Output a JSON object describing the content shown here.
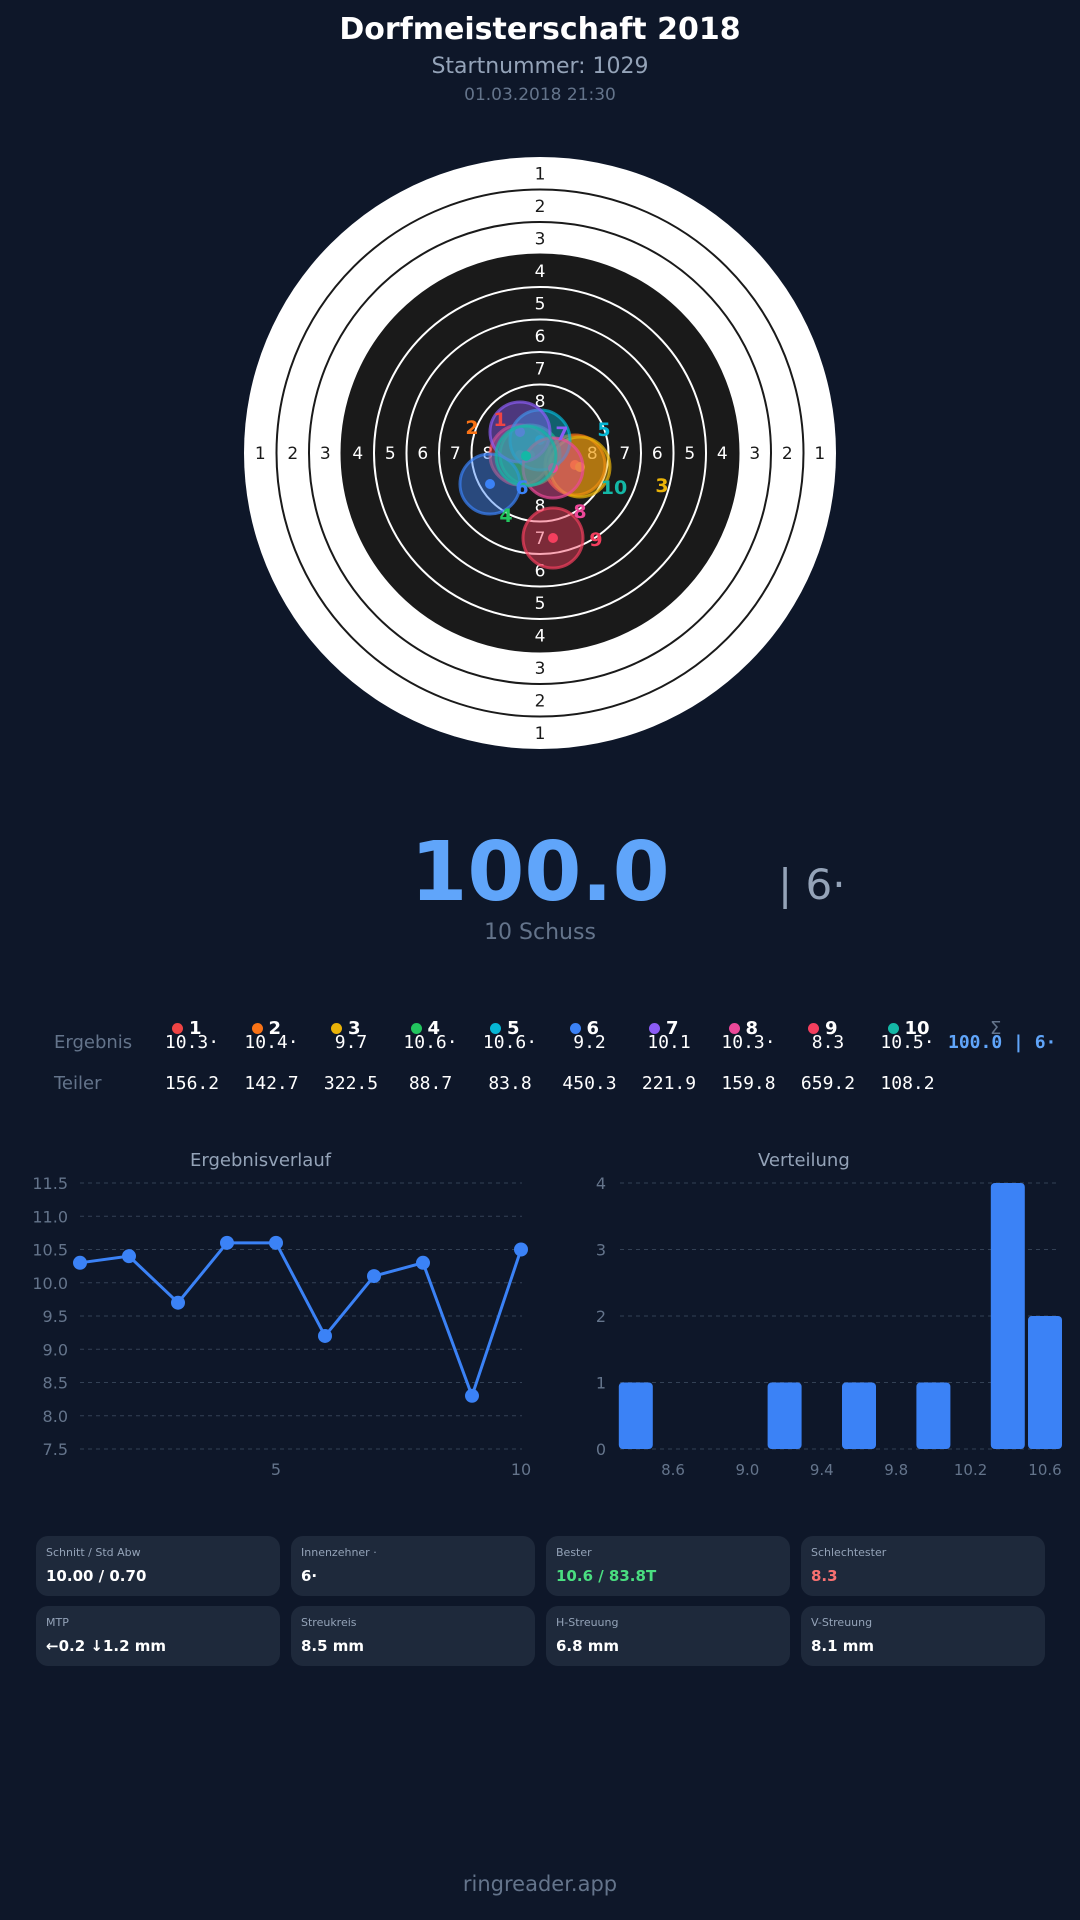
{
  "header": {
    "title": "Dorfmeisterschaft 2018",
    "start_number": "Startnummer: 1029",
    "datetime": "01.03.2018 21:30"
  },
  "target": {
    "ring_labels": [
      "1",
      "2",
      "3",
      "4",
      "5",
      "6",
      "7",
      "8"
    ]
  },
  "summary": {
    "total": "100.0",
    "inner_tens": "| 6·",
    "shot_count": "10 Schuss"
  },
  "table": {
    "sum_symbol": "Σ",
    "row_labels": {
      "result": "Ergebnis",
      "teiler": "Teiler"
    },
    "shots": [
      {
        "n": "1",
        "color": "#ef4444",
        "result": "10.3·",
        "teiler": "156.2"
      },
      {
        "n": "2",
        "color": "#f97316",
        "result": "10.4·",
        "teiler": "142.7"
      },
      {
        "n": "3",
        "color": "#eab308",
        "result": "9.7",
        "teiler": "322.5"
      },
      {
        "n": "4",
        "color": "#22c55e",
        "result": "10.6·",
        "teiler": "88.7"
      },
      {
        "n": "5",
        "color": "#06b6d4",
        "result": "10.6·",
        "teiler": "83.8"
      },
      {
        "n": "6",
        "color": "#3b82f6",
        "result": "9.2",
        "teiler": "450.3"
      },
      {
        "n": "7",
        "color": "#8b5cf6",
        "result": "10.1",
        "teiler": "221.9"
      },
      {
        "n": "8",
        "color": "#ec4899",
        "result": "10.3·",
        "teiler": "159.8"
      },
      {
        "n": "9",
        "color": "#f43f5e",
        "result": "8.3",
        "teiler": "659.2"
      },
      {
        "n": "10",
        "color": "#14b8a6",
        "result": "10.5·",
        "teiler": "108.2"
      }
    ],
    "sum_result": "100.0 | 6·"
  },
  "chart_data": [
    {
      "type": "line",
      "title": "Ergebnisverlauf",
      "x": [
        1,
        2,
        3,
        4,
        5,
        6,
        7,
        8,
        9,
        10
      ],
      "values": [
        10.3,
        10.4,
        9.7,
        10.6,
        10.6,
        9.2,
        10.1,
        10.3,
        8.3,
        10.5
      ],
      "ylim": [
        7.5,
        11.5
      ],
      "yticks": [
        "7.5",
        "8.0",
        "8.5",
        "9.0",
        "9.5",
        "10.0",
        "10.5",
        "11.0",
        "11.5"
      ],
      "xticks": [
        "5",
        "10"
      ],
      "grid": true,
      "color": "#3b82f6"
    },
    {
      "type": "bar",
      "title": "Verteilung",
      "categories": [
        8.4,
        9.2,
        9.6,
        10.0,
        10.4,
        10.6
      ],
      "values": [
        1,
        1,
        1,
        1,
        4,
        2
      ],
      "ylim": [
        0,
        4
      ],
      "yticks": [
        "0",
        "1",
        "2",
        "3",
        "4"
      ],
      "xticks": [
        "8.6",
        "9.0",
        "9.4",
        "9.8",
        "10.2",
        "10.6"
      ],
      "grid": true,
      "color": "#3b82f6"
    }
  ],
  "stats": [
    {
      "label": "Schnitt / Std Abw",
      "value": "10.00 / 0.70",
      "color": "#ffffff"
    },
    {
      "label": "Innenzehner ·",
      "value": "6·",
      "color": "#ffffff"
    },
    {
      "label": "Bester",
      "value": "10.6 / 83.8T",
      "color": "#4ade80"
    },
    {
      "label": "Schlechtester",
      "value": "8.3",
      "color": "#f87171"
    },
    {
      "label": "MTP",
      "value": "←0.2 ↓1.2 mm",
      "color": "#ffffff"
    },
    {
      "label": "Streukreis",
      "value": "8.5 mm",
      "color": "#ffffff"
    },
    {
      "label": "H-Streuung",
      "value": "6.8 mm",
      "color": "#ffffff"
    },
    {
      "label": "V-Streuung",
      "value": "8.1 mm",
      "color": "#ffffff"
    }
  ],
  "footer": "ringreader.app"
}
